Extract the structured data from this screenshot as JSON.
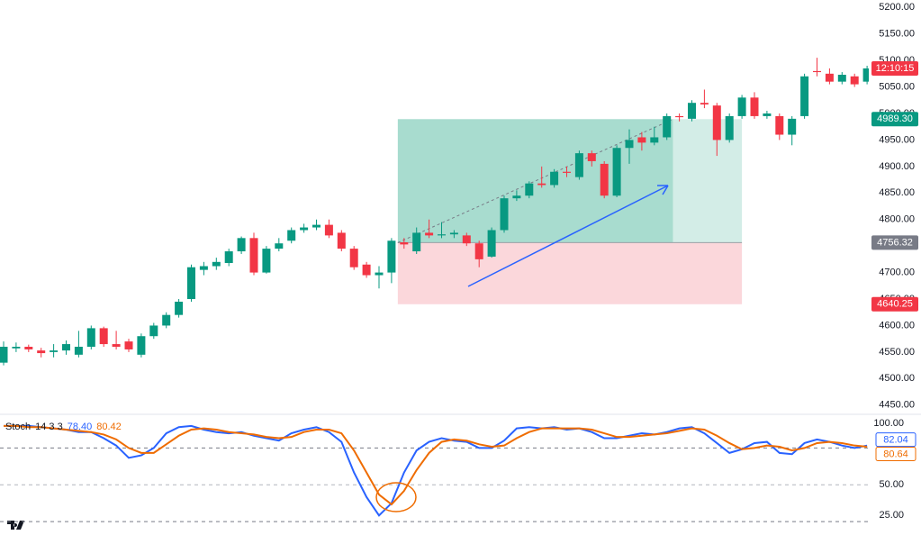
{
  "chart_data": [
    {
      "type": "candlestick",
      "open": [
        4530,
        4557,
        4560,
        4553,
        4550,
        4553,
        4545,
        4560,
        4595,
        4565,
        4570,
        4545,
        4580,
        4600,
        4620,
        4650,
        4705,
        4712,
        4718,
        4740,
        4765,
        4700,
        4745,
        4760,
        4780,
        4785,
        4790,
        4775,
        4745,
        4715,
        4695,
        4700,
        4757,
        4740,
        4775,
        4770,
        4772,
        4770,
        4755,
        4730,
        4780,
        4840,
        4845,
        4868,
        4865,
        4890,
        4880,
        4925,
        4905,
        4845,
        4935,
        4955,
        4945,
        4955,
        4995,
        4990,
        5020,
        5015,
        4950,
        4995,
        5030,
        4995,
        4995,
        4960,
        4995,
        5080,
        5075,
        5060,
        5070,
        5060
      ],
      "high": [
        4570,
        4568,
        4564,
        4558,
        4565,
        4572,
        4590,
        4600,
        4598,
        4590,
        4575,
        4585,
        4605,
        4625,
        4650,
        4715,
        4720,
        4728,
        4745,
        4768,
        4775,
        4750,
        4765,
        4785,
        4792,
        4800,
        4800,
        4780,
        4750,
        4720,
        4712,
        4765,
        4765,
        4785,
        4800,
        4795,
        4780,
        4775,
        4760,
        4785,
        4845,
        4855,
        4872,
        4900,
        4895,
        4900,
        4930,
        4930,
        4910,
        4940,
        4970,
        4965,
        4975,
        5000,
        5000,
        5025,
        5045,
        5020,
        5000,
        5035,
        5040,
        5005,
        5000,
        4995,
        5075,
        5105,
        5085,
        5078,
        5075,
        5090
      ],
      "low": [
        4525,
        4550,
        4550,
        4540,
        4540,
        4545,
        4540,
        4555,
        4560,
        4555,
        4550,
        4540,
        4575,
        4595,
        4615,
        4645,
        4695,
        4705,
        4712,
        4735,
        4695,
        4698,
        4740,
        4755,
        4775,
        4780,
        4765,
        4740,
        4705,
        4690,
        4670,
        4680,
        4745,
        4735,
        4765,
        4765,
        4765,
        4750,
        4710,
        4728,
        4775,
        4835,
        4840,
        4860,
        4860,
        4880,
        4875,
        4900,
        4840,
        4842,
        4905,
        4930,
        4940,
        4950,
        4985,
        4985,
        5010,
        4920,
        4945,
        4990,
        4990,
        4990,
        4950,
        4940,
        4990,
        5070,
        5055,
        5055,
        5050,
        5055
      ],
      "close": [
        4560,
        4560,
        4555,
        4548,
        4553,
        4565,
        4560,
        4595,
        4565,
        4560,
        4555,
        4580,
        4600,
        4620,
        4645,
        4710,
        4712,
        4720,
        4740,
        4765,
        4700,
        4745,
        4755,
        4780,
        4785,
        4790,
        4770,
        4745,
        4710,
        4695,
        4700,
        4760,
        4753,
        4775,
        4770,
        4772,
        4775,
        4755,
        4725,
        4780,
        4840,
        4845,
        4868,
        4865,
        4890,
        4888,
        4925,
        4910,
        4845,
        4935,
        4950,
        4945,
        4955,
        4995,
        4993,
        5020,
        5017,
        4950,
        4995,
        5030,
        4995,
        5000,
        4960,
        4990,
        5070,
        5078,
        5060,
        5073,
        5055,
        5085
      ],
      "up_color": "#089981",
      "down_color": "#f23645",
      "ylim": [
        4436,
        5214
      ],
      "yticks": [
        {
          "value": 4450,
          "label": "4450.00"
        },
        {
          "value": 4500,
          "label": "4500.00"
        },
        {
          "value": 4550,
          "label": "4550.00"
        },
        {
          "value": 4600,
          "label": "4600.00"
        },
        {
          "value": 4650,
          "label": "4650.00"
        },
        {
          "value": 4700,
          "label": "4700.00"
        },
        {
          "value": 4750,
          "label": "4750.00"
        },
        {
          "value": 4800,
          "label": "4800.00"
        },
        {
          "value": 4850,
          "label": "4850.00"
        },
        {
          "value": 4900,
          "label": "4900.00"
        },
        {
          "value": 4950,
          "label": "4950.00"
        },
        {
          "value": 5000,
          "label": "5000.00"
        },
        {
          "value": 5050,
          "label": "5050.00"
        },
        {
          "value": 5100,
          "label": "5100.00"
        },
        {
          "value": 5150,
          "label": "5150.00"
        },
        {
          "value": 5200,
          "label": "5200.00"
        }
      ],
      "timer": "12:10:15",
      "target": {
        "value": 4989.3,
        "label": "4989.30",
        "color": "#089981"
      },
      "entry": {
        "value": 4756.32,
        "label": "4756.32",
        "color": "#787b86"
      },
      "stop": {
        "value": 4640.25,
        "label": "4640.25",
        "color": "#f23645"
      }
    },
    {
      "type": "line",
      "title": "Stoch",
      "params": "14 3 3",
      "series": [
        {
          "color": "#2962ff",
          "legend_value": {
            "value": 78.4,
            "label": "78.40"
          },
          "axis_value": {
            "value": 82.04,
            "label": "82.04"
          },
          "values": [
            98,
            98,
            98,
            97,
            96,
            95,
            93,
            93,
            88,
            82,
            72,
            74,
            80,
            92,
            97,
            98,
            95,
            93,
            92,
            93,
            90,
            88,
            86,
            92,
            95,
            97,
            93,
            85,
            60,
            40,
            25,
            35,
            60,
            78,
            85,
            88,
            86,
            85,
            80,
            80,
            86,
            96,
            97,
            96,
            97,
            95,
            96,
            93,
            88,
            88,
            90,
            92,
            91,
            93,
            96,
            97,
            92,
            84,
            76,
            79,
            84,
            85,
            76,
            75,
            84,
            87,
            85,
            82,
            80,
            82
          ]
        },
        {
          "color": "#ef6c00",
          "legend_value": {
            "value": 80.42,
            "label": "80.42"
          },
          "axis_value": {
            "value": 80.64,
            "label": "80.64"
          },
          "values": [
            98,
            98,
            97,
            97,
            96,
            95,
            94,
            93,
            91,
            87,
            80,
            76,
            76,
            83,
            90,
            95,
            96,
            95,
            93,
            92,
            91,
            89,
            88,
            89,
            93,
            95,
            95,
            92,
            78,
            60,
            42,
            34,
            45,
            62,
            76,
            85,
            87,
            86,
            83,
            81,
            82,
            88,
            93,
            96,
            96,
            96,
            96,
            95,
            92,
            89,
            89,
            90,
            91,
            92,
            94,
            96,
            95,
            90,
            84,
            79,
            80,
            82,
            81,
            78,
            80,
            84,
            85,
            84,
            82,
            81
          ]
        }
      ],
      "ylim": [
        12,
        106
      ],
      "yticks": [
        {
          "value": 25,
          "label": "25.00"
        },
        {
          "value": 50,
          "label": "50.00"
        },
        {
          "value": 100,
          "label": "100.00"
        }
      ],
      "bands": [
        20,
        80
      ]
    }
  ]
}
